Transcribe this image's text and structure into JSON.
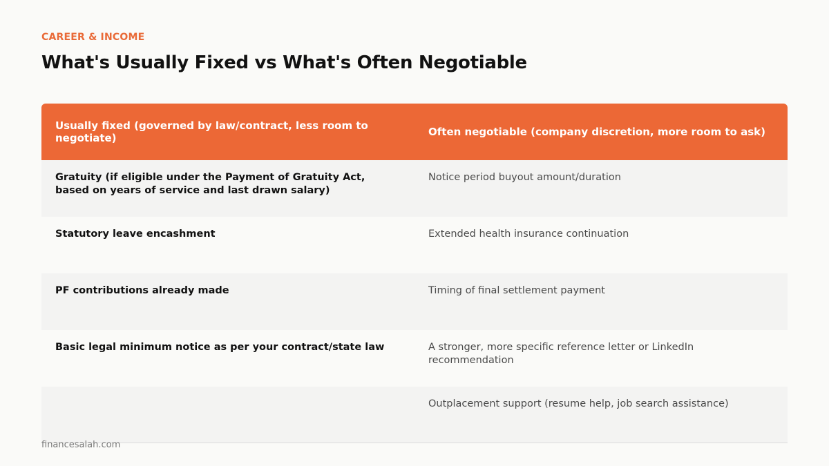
{
  "header": {
    "category": "CAREER & INCOME",
    "title": "What's Usually Fixed vs What's Often Negotiable"
  },
  "table": {
    "columns": [
      "Usually fixed (governed by law/contract, less room to negotiate)",
      "Often negotiable (company discretion, more room to ask)"
    ],
    "rows": [
      {
        "fixed": "Gratuity (if eligible under the Payment of Gratuity Act, based on years of service and last drawn salary)",
        "negotiable": "Notice period buyout amount/duration"
      },
      {
        "fixed": "Statutory leave encashment",
        "negotiable": "Extended health insurance continuation"
      },
      {
        "fixed": "PF contributions already made",
        "negotiable": "Timing of final settlement payment"
      },
      {
        "fixed": "Basic legal minimum notice as per your contract/state law",
        "negotiable": "A stronger, more specific reference letter or LinkedIn recommendation"
      },
      {
        "fixed": "",
        "negotiable": "Outplacement support (resume help, job search assistance)"
      }
    ]
  },
  "footer": {
    "source": "financesalah.com"
  },
  "colors": {
    "accent": "#ec6836",
    "row_alt": "#f3f3f2",
    "background": "#fafaf8"
  }
}
